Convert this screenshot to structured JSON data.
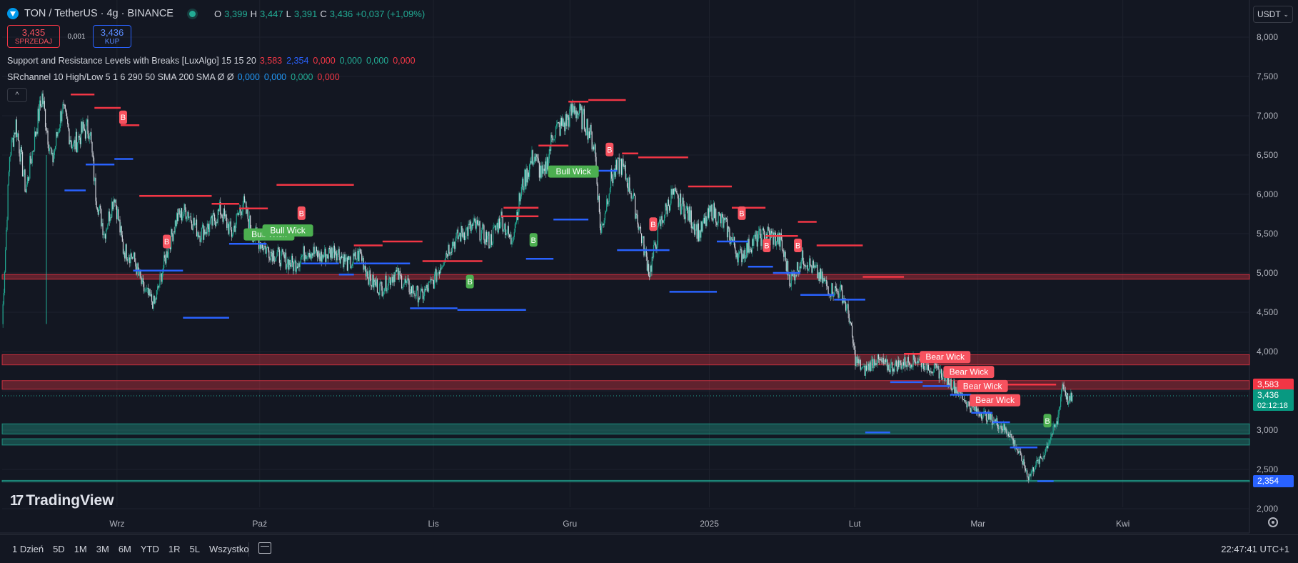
{
  "header": {
    "symbol": "TON / TetherUS · 4g · BINANCE",
    "ohlc": [
      {
        "k": "O",
        "v": "3,399"
      },
      {
        "k": "H",
        "v": "3,447"
      },
      {
        "k": "L",
        "v": "3,391"
      },
      {
        "k": "C",
        "v": "3,436"
      }
    ],
    "change": "+0,037 (+1,09%)",
    "accent_up": "#22ab94",
    "accent_down": "#f23645"
  },
  "trade": {
    "sell_price": "3,435",
    "sell_label": "SPRZEDAJ",
    "spread": "0,001",
    "buy_price": "3,436",
    "buy_label": "KUP"
  },
  "indicators": [
    {
      "name": "Support and Resistance Levels with Breaks [LuxAlgo] 15 15 20",
      "values": [
        {
          "t": "3,583",
          "c": "#f23645"
        },
        {
          "t": "2,354",
          "c": "#2962ff"
        },
        {
          "t": "0,000",
          "c": "#f23645"
        },
        {
          "t": "0,000",
          "c": "#22ab94"
        },
        {
          "t": "0,000",
          "c": "#22ab94"
        },
        {
          "t": "0,000",
          "c": "#f23645"
        }
      ]
    },
    {
      "name": "SRchannel 10 High/Low 5 1 6 290 50 SMA 200 SMA  Ø  Ø",
      "values": [
        {
          "t": "0,000",
          "c": "#2196f3"
        },
        {
          "t": "0,000",
          "c": "#2196f3"
        },
        {
          "t": "0,000",
          "c": "#22ab94"
        },
        {
          "t": "0,000",
          "c": "#f23645"
        }
      ]
    }
  ],
  "currency": "USDT",
  "collapse_glyph": "^",
  "brand": {
    "mark": "17",
    "name": "TradingView"
  },
  "bottom": {
    "ranges": [
      "1 Dzień",
      "5D",
      "1M",
      "3M",
      "6M",
      "YTD",
      "1R",
      "5L",
      "Wszystko"
    ],
    "clock": "22:47:41 UTC+1"
  },
  "chart_data": {
    "type": "candlestick",
    "y_ticks": [
      "8,000",
      "7,500",
      "7,000",
      "6,500",
      "6,000",
      "5,500",
      "5,000",
      "4,500",
      "4,000",
      "3,500",
      "3,000",
      "2,500",
      "2,000"
    ],
    "ylim": [
      2.0,
      8.0
    ],
    "x_ticks": [
      {
        "label": "Wrz",
        "pos": 0.0921
      },
      {
        "label": "Paź",
        "pos": 0.2065
      },
      {
        "label": "Lis",
        "pos": 0.3458
      },
      {
        "label": "Gru",
        "pos": 0.4552
      },
      {
        "label": "2025",
        "pos": 0.567
      },
      {
        "label": "Lut",
        "pos": 0.6836
      },
      {
        "label": "Mar",
        "pos": 0.7823
      },
      {
        "label": "Kwi",
        "pos": 0.8985
      }
    ],
    "price_path": [
      [
        0.0,
        4.35
      ],
      [
        0.006,
        6.5
      ],
      [
        0.011,
        6.9
      ],
      [
        0.019,
        6.05
      ],
      [
        0.028,
        6.9
      ],
      [
        0.032,
        7.25
      ],
      [
        0.04,
        6.4
      ],
      [
        0.048,
        7.1
      ],
      [
        0.057,
        6.6
      ],
      [
        0.064,
        6.8
      ],
      [
        0.07,
        6.85
      ],
      [
        0.075,
        6.0
      ],
      [
        0.082,
        5.5
      ],
      [
        0.09,
        6.0
      ],
      [
        0.097,
        5.3
      ],
      [
        0.105,
        5.2
      ],
      [
        0.113,
        4.8
      ],
      [
        0.122,
        4.6
      ],
      [
        0.131,
        5.2
      ],
      [
        0.14,
        5.7
      ],
      [
        0.148,
        5.8
      ],
      [
        0.158,
        5.5
      ],
      [
        0.167,
        5.6
      ],
      [
        0.175,
        5.8
      ],
      [
        0.184,
        5.5
      ],
      [
        0.193,
        5.9
      ],
      [
        0.201,
        5.5
      ],
      [
        0.212,
        5.3
      ],
      [
        0.223,
        5.2
      ],
      [
        0.234,
        5.1
      ],
      [
        0.245,
        5.3
      ],
      [
        0.256,
        5.2
      ],
      [
        0.267,
        5.3
      ],
      [
        0.278,
        5.1
      ],
      [
        0.287,
        5.25
      ],
      [
        0.295,
        4.9
      ],
      [
        0.304,
        4.8
      ],
      [
        0.315,
        5.0
      ],
      [
        0.327,
        4.8
      ],
      [
        0.336,
        4.7
      ],
      [
        0.346,
        4.9
      ],
      [
        0.357,
        5.3
      ],
      [
        0.368,
        5.5
      ],
      [
        0.379,
        5.6
      ],
      [
        0.391,
        5.4
      ],
      [
        0.4,
        5.7
      ],
      [
        0.408,
        5.4
      ],
      [
        0.417,
        6.1
      ],
      [
        0.426,
        6.5
      ],
      [
        0.434,
        6.2
      ],
      [
        0.442,
        6.8
      ],
      [
        0.451,
        6.9
      ],
      [
        0.459,
        7.1
      ],
      [
        0.468,
        6.9
      ],
      [
        0.475,
        6.6
      ],
      [
        0.48,
        5.5
      ],
      [
        0.488,
        6.2
      ],
      [
        0.496,
        6.4
      ],
      [
        0.505,
        6.0
      ],
      [
        0.512,
        5.5
      ],
      [
        0.519,
        5.0
      ],
      [
        0.527,
        5.6
      ],
      [
        0.537,
        6.0
      ],
      [
        0.548,
        5.8
      ],
      [
        0.559,
        5.5
      ],
      [
        0.569,
        5.8
      ],
      [
        0.58,
        5.6
      ],
      [
        0.591,
        5.2
      ],
      [
        0.602,
        5.4
      ],
      [
        0.613,
        5.5
      ],
      [
        0.624,
        5.4
      ],
      [
        0.632,
        4.9
      ],
      [
        0.642,
        5.2
      ],
      [
        0.653,
        5.0
      ],
      [
        0.663,
        4.8
      ],
      [
        0.673,
        4.75
      ],
      [
        0.679,
        4.45
      ],
      [
        0.684,
        3.9
      ],
      [
        0.691,
        3.75
      ],
      [
        0.7,
        3.9
      ],
      [
        0.711,
        3.8
      ],
      [
        0.722,
        3.85
      ],
      [
        0.733,
        3.9
      ],
      [
        0.744,
        3.8
      ],
      [
        0.755,
        3.7
      ],
      [
        0.766,
        3.5
      ],
      [
        0.776,
        3.3
      ],
      [
        0.787,
        3.2
      ],
      [
        0.797,
        3.1
      ],
      [
        0.808,
        2.95
      ],
      [
        0.818,
        2.6
      ],
      [
        0.823,
        2.4
      ],
      [
        0.828,
        2.55
      ],
      [
        0.834,
        2.65
      ],
      [
        0.84,
        2.9
      ],
      [
        0.846,
        3.1
      ],
      [
        0.85,
        3.6
      ],
      [
        0.855,
        3.35
      ],
      [
        0.858,
        3.436
      ]
    ],
    "resistance_segments": [
      [
        0.055,
        0.074,
        7.27
      ],
      [
        0.074,
        0.095,
        7.1
      ],
      [
        0.095,
        0.11,
        6.88
      ],
      [
        0.11,
        0.168,
        5.98
      ],
      [
        0.168,
        0.19,
        5.88
      ],
      [
        0.19,
        0.213,
        5.82
      ],
      [
        0.22,
        0.282,
        6.12
      ],
      [
        0.282,
        0.305,
        5.35
      ],
      [
        0.305,
        0.337,
        5.4
      ],
      [
        0.337,
        0.385,
        5.15
      ],
      [
        0.4,
        0.43,
        5.72
      ],
      [
        0.43,
        0.402,
        5.83
      ],
      [
        0.43,
        0.454,
        6.62
      ],
      [
        0.454,
        0.47,
        7.18
      ],
      [
        0.47,
        0.5,
        7.2
      ],
      [
        0.497,
        0.51,
        6.52
      ],
      [
        0.51,
        0.55,
        6.47
      ],
      [
        0.55,
        0.585,
        6.1
      ],
      [
        0.585,
        0.612,
        5.83
      ],
      [
        0.612,
        0.638,
        5.47
      ],
      [
        0.638,
        0.653,
        5.65
      ],
      [
        0.653,
        0.69,
        5.35
      ],
      [
        0.69,
        0.723,
        4.95
      ],
      [
        0.723,
        0.76,
        3.97
      ],
      [
        0.805,
        0.845,
        3.58
      ]
    ],
    "support_segments": [
      [
        0.05,
        0.067,
        6.05
      ],
      [
        0.067,
        0.09,
        6.38
      ],
      [
        0.09,
        0.105,
        6.45
      ],
      [
        0.105,
        0.145,
        5.03
      ],
      [
        0.145,
        0.182,
        4.43
      ],
      [
        0.182,
        0.212,
        5.37
      ],
      [
        0.24,
        0.27,
        5.12
      ],
      [
        0.27,
        0.282,
        4.98
      ],
      [
        0.282,
        0.327,
        5.12
      ],
      [
        0.327,
        0.365,
        4.55
      ],
      [
        0.365,
        0.42,
        4.53
      ],
      [
        0.42,
        0.442,
        5.18
      ],
      [
        0.442,
        0.47,
        5.68
      ],
      [
        0.47,
        0.493,
        6.3
      ],
      [
        0.493,
        0.535,
        5.29
      ],
      [
        0.535,
        0.573,
        4.76
      ],
      [
        0.573,
        0.598,
        5.4
      ],
      [
        0.598,
        0.618,
        5.08
      ],
      [
        0.618,
        0.64,
        5.0
      ],
      [
        0.64,
        0.667,
        4.72
      ],
      [
        0.667,
        0.692,
        4.66
      ],
      [
        0.692,
        0.712,
        2.97
      ],
      [
        0.712,
        0.738,
        3.61
      ],
      [
        0.738,
        0.76,
        3.56
      ],
      [
        0.76,
        0.777,
        3.45
      ],
      [
        0.777,
        0.794,
        3.22
      ],
      [
        0.794,
        0.808,
        3.1
      ],
      [
        0.808,
        0.83,
        2.78
      ],
      [
        0.83,
        0.843,
        2.35
      ]
    ],
    "zones": [
      {
        "y1": 4.98,
        "y2": 4.92,
        "color": "#f23645"
      },
      {
        "y1": 3.96,
        "y2": 3.83,
        "color": "#f23645"
      },
      {
        "y1": 3.63,
        "y2": 3.52,
        "color": "#f23645"
      },
      {
        "y1": 3.08,
        "y2": 2.95,
        "color": "#22ab94"
      },
      {
        "y1": 2.89,
        "y2": 2.81,
        "color": "#22ab94"
      },
      {
        "y1": 2.36,
        "y2": 2.35,
        "color": "#22ab94"
      }
    ],
    "annotations": [
      {
        "text": "B",
        "kind": "bear",
        "x": 0.097,
        "y": 6.98
      },
      {
        "text": "B",
        "kind": "bear",
        "x": 0.132,
        "y": 5.4
      },
      {
        "text": "B",
        "kind": "bear",
        "x": 0.24,
        "y": 5.76
      },
      {
        "text": "Bull Wick",
        "kind": "bull",
        "x": 0.214,
        "y": 5.49
      },
      {
        "text": "Bull Wick",
        "kind": "bull",
        "x": 0.229,
        "y": 5.54
      },
      {
        "text": "B",
        "kind": "bull",
        "x": 0.426,
        "y": 5.42
      },
      {
        "text": "B",
        "kind": "bull",
        "x": 0.375,
        "y": 4.89
      },
      {
        "text": "Bull Wick",
        "kind": "bull",
        "x": 0.458,
        "y": 6.29
      },
      {
        "text": "B",
        "kind": "bear",
        "x": 0.487,
        "y": 6.57
      },
      {
        "text": "B",
        "kind": "bear",
        "x": 0.522,
        "y": 5.62
      },
      {
        "text": "B",
        "kind": "bear",
        "x": 0.593,
        "y": 5.76
      },
      {
        "text": "B",
        "kind": "bear",
        "x": 0.613,
        "y": 5.35
      },
      {
        "text": "B",
        "kind": "bear",
        "x": 0.638,
        "y": 5.35
      },
      {
        "text": "Bear Wick",
        "kind": "bear",
        "x": 0.756,
        "y": 3.93
      },
      {
        "text": "Bear Wick",
        "kind": "bear",
        "x": 0.775,
        "y": 3.74
      },
      {
        "text": "Bear Wick",
        "kind": "bear",
        "x": 0.786,
        "y": 3.56
      },
      {
        "text": "Bear Wick",
        "kind": "bear",
        "x": 0.796,
        "y": 3.38
      },
      {
        "text": "B",
        "kind": "bull",
        "x": 0.838,
        "y": 3.12
      }
    ],
    "price_labels": [
      {
        "text": "3,583",
        "y": 3.583,
        "bg": "#f23645"
      },
      {
        "text": "3,436",
        "sub": "02:12:18",
        "y": 3.436,
        "bg": "#089981"
      },
      {
        "text": "2,354",
        "y": 2.354,
        "bg": "#2962ff"
      }
    ],
    "last_price": 3.436
  }
}
